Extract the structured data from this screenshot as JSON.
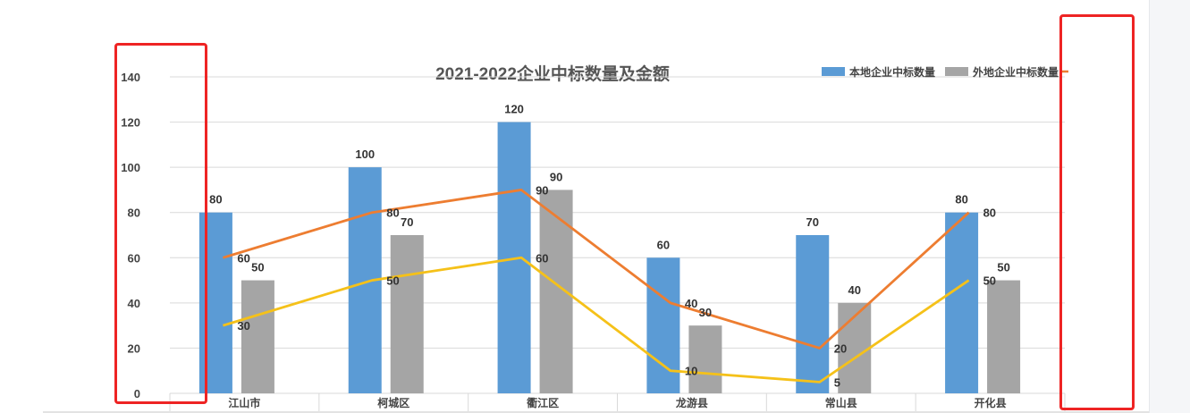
{
  "chart_data": {
    "type": "bar",
    "title": "2021-2022企业中标数量及金额",
    "categories": [
      "江山市",
      "柯城区",
      "衢江区",
      "龙游县",
      "常山县",
      "开化县"
    ],
    "ylim": [
      0,
      140
    ],
    "yticks": [
      0,
      20,
      40,
      60,
      80,
      100,
      120,
      140
    ],
    "grid": true,
    "legend_position": "top-right",
    "series": [
      {
        "name": "本地企业中标数量",
        "type": "bar",
        "color": "#5b9bd5",
        "values": [
          80,
          100,
          120,
          60,
          70,
          80
        ]
      },
      {
        "name": "外地企业中标数量",
        "type": "bar",
        "color": "#a5a5a5",
        "values": [
          50,
          70,
          90,
          30,
          40,
          50
        ]
      },
      {
        "type": "line",
        "color": "#ed7d31",
        "values": [
          60,
          80,
          90,
          40,
          20,
          80
        ]
      },
      {
        "type": "line",
        "color": "#f5c119",
        "values": [
          30,
          50,
          60,
          10,
          5,
          50
        ]
      }
    ]
  }
}
